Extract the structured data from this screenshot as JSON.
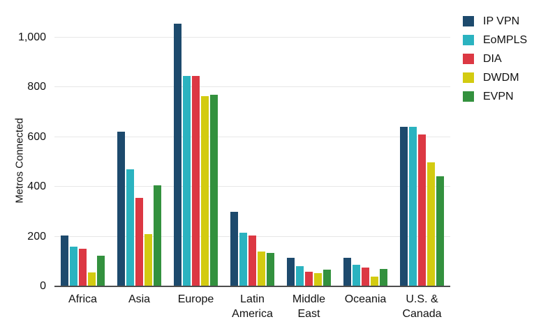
{
  "chart_data": {
    "type": "bar",
    "title": "",
    "xlabel": "",
    "ylabel": "Metros Connected",
    "categories": [
      "Africa",
      "Asia",
      "Europe",
      "Latin America",
      "Middle East",
      "Oceania",
      "U.S. & Canada"
    ],
    "category_label_lines": [
      [
        "Africa"
      ],
      [
        "Asia"
      ],
      [
        "Europe"
      ],
      [
        "Latin",
        "America"
      ],
      [
        "Middle",
        "East"
      ],
      [
        "Oceania"
      ],
      [
        "U.S. &",
        "Canada"
      ]
    ],
    "series": [
      {
        "name": "IP VPN",
        "color": "#1d4a6d",
        "values": [
          205,
          620,
          1055,
          300,
          115,
          115,
          640
        ]
      },
      {
        "name": "EoMPLS",
        "color": "#2bb3c0",
        "values": [
          160,
          470,
          845,
          215,
          80,
          88,
          642
        ]
      },
      {
        "name": "DIA",
        "color": "#dc3843",
        "values": [
          150,
          355,
          845,
          205,
          58,
          76,
          610
        ]
      },
      {
        "name": "DWDM",
        "color": "#d3cb11",
        "values": [
          55,
          210,
          765,
          140,
          52,
          40,
          498
        ]
      },
      {
        "name": "EVPN",
        "color": "#33913e",
        "values": [
          122,
          405,
          770,
          135,
          67,
          70,
          443
        ]
      }
    ],
    "yticks": [
      0,
      200,
      400,
      600,
      800,
      1000
    ],
    "ytick_labels": [
      "0",
      "200",
      "400",
      "600",
      "800",
      "1,000"
    ],
    "ylim": [
      0,
      1100
    ],
    "grid": "horizontal",
    "legend_position": "top-right",
    "axis_colors": {
      "baseline": "#4d4d4d",
      "gridline": "#e7e7e7",
      "text": "#111111"
    }
  }
}
